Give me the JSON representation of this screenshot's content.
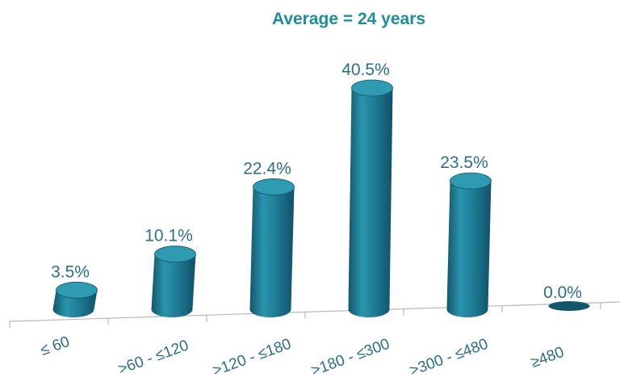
{
  "chart_data": {
    "type": "bar",
    "title": "Average = 24 years",
    "xlabel": "",
    "ylabel": "",
    "categories": [
      "≤ 60",
      ">60 - ≤120",
      ">120 - ≤180",
      ">180 - ≤300",
      ">300 - ≤480",
      "≥480"
    ],
    "values": [
      3.5,
      10.1,
      22.4,
      40.5,
      23.5,
      0.0
    ],
    "data_labels": [
      "3.5%",
      "10.1%",
      "22.4%",
      "40.5%",
      "23.5%",
      "0.0%"
    ],
    "ylim": [
      0,
      40.5
    ],
    "grid": false,
    "legend": "none",
    "bar_style": "3d-cylinder",
    "colors": {
      "bar_body": "#1f7f97",
      "bar_top": "#2f9bb3",
      "bar_dark": "#13566b",
      "title": "#1f8c9c",
      "labels": "#2b6f86",
      "axis": "#b8b8b8"
    }
  }
}
